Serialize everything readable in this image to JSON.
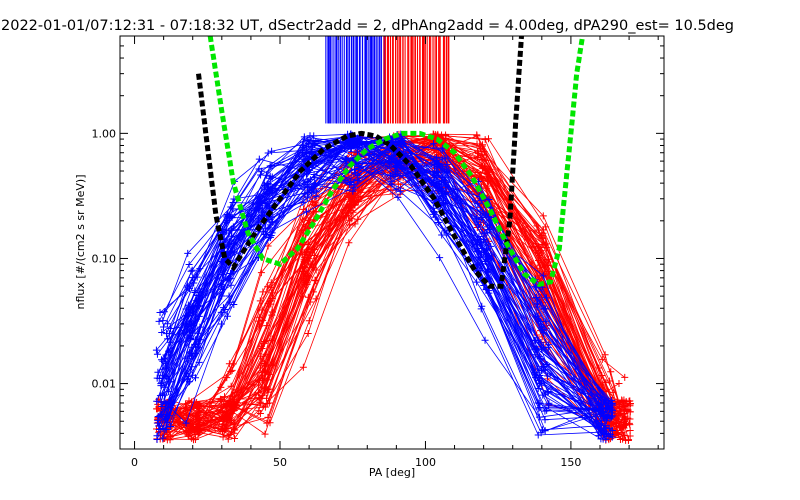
{
  "chart_data": {
    "type": "line",
    "title": "2022-01-01/07:12:31 - 07:18:32 UT, dSectr2add = 2, dPhAng2add = 4.00deg, dPA290_est=  10.5deg",
    "xlabel": "PA [deg]",
    "ylabel": "nflux [#/(cm2 s sr MeV)]",
    "xlim": [
      -5,
      182
    ],
    "ylim": [
      0.003,
      6.0
    ],
    "yscale": "log",
    "x_ticks": [
      0,
      50,
      100,
      150
    ],
    "x_tick_labels": [
      "0",
      "50",
      "100",
      "150"
    ],
    "y_ticks": [
      0.01,
      0.1,
      1.0
    ],
    "y_tick_labels": [
      "0.01",
      "0.10",
      "1.00"
    ],
    "colors": {
      "blue": "#0000ff",
      "red": "#ff0000",
      "black": "#000000",
      "green": "#00e600"
    },
    "series": [
      {
        "name": "black-fit",
        "color": "#000000",
        "style": "dashed-thick",
        "x": [
          22,
          25,
          28,
          31,
          34,
          38,
          43,
          50,
          57,
          65,
          73,
          78,
          83,
          88,
          95,
          103,
          110,
          117,
          122,
          126,
          129,
          131,
          133
        ],
        "y": [
          3.0,
          0.8,
          0.22,
          0.1,
          0.085,
          0.12,
          0.18,
          0.3,
          0.5,
          0.75,
          0.95,
          1.0,
          0.95,
          0.8,
          0.55,
          0.3,
          0.15,
          0.08,
          0.06,
          0.06,
          0.2,
          1.2,
          6.0
        ]
      },
      {
        "name": "green-fit",
        "color": "#00e600",
        "style": "dashed-thick",
        "x": [
          26,
          30,
          34,
          39,
          44,
          50,
          56,
          62,
          68,
          74,
          80,
          86,
          92,
          98,
          104,
          110,
          116,
          122,
          128,
          134,
          139,
          143,
          146,
          148,
          150,
          152,
          154
        ],
        "y": [
          6.0,
          1.5,
          0.4,
          0.16,
          0.1,
          0.09,
          0.12,
          0.2,
          0.35,
          0.55,
          0.75,
          0.9,
          1.0,
          1.0,
          0.9,
          0.7,
          0.45,
          0.25,
          0.13,
          0.075,
          0.062,
          0.065,
          0.12,
          0.35,
          1.0,
          3.0,
          6.0
        ]
      }
    ],
    "blue_curves": {
      "count": 70,
      "x_points": [
        10,
        20,
        32,
        45,
        60,
        75,
        90,
        105,
        120,
        140,
        162
      ],
      "peak_pa": 77,
      "marker": "+"
    },
    "red_curves": {
      "count": 70,
      "x_points": [
        10,
        20,
        32,
        45,
        60,
        75,
        90,
        105,
        120,
        140,
        162,
        168
      ],
      "peak_pa": 98,
      "marker": "+"
    },
    "blue_ticks_pa_range": [
      66,
      86
    ],
    "red_ticks_pa_range": [
      86,
      108
    ]
  }
}
